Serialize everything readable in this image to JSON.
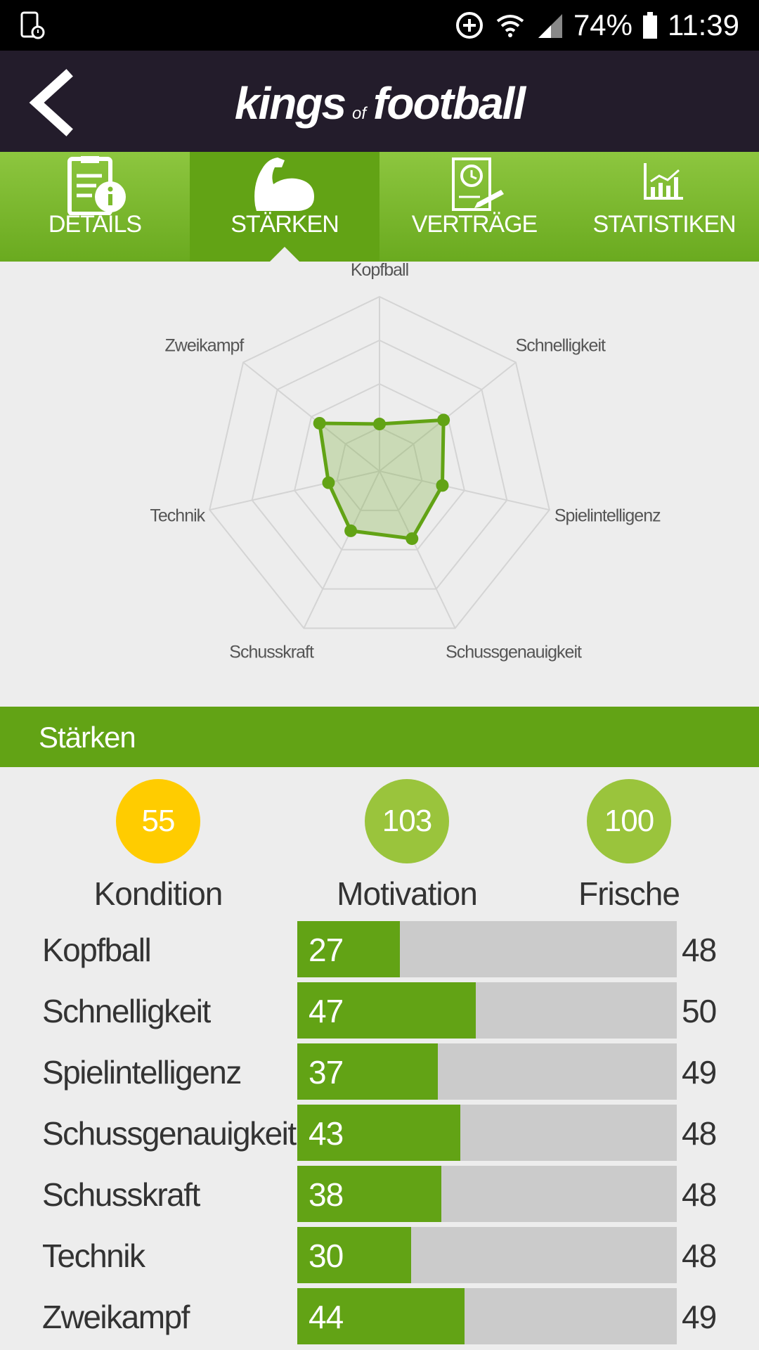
{
  "status_bar": {
    "battery": "74%",
    "time": "11:39",
    "icons": [
      "screen-lock-icon",
      "data-saver-icon",
      "wifi-icon",
      "signal-icon",
      "battery-icon"
    ]
  },
  "header": {
    "logo_part1": "kings",
    "logo_part2": "of",
    "logo_part3": "football",
    "back_icon": "back-arrow-icon"
  },
  "tabs": [
    {
      "label": "DETAILS",
      "icon": "details-clipboard-icon",
      "active": false
    },
    {
      "label": "STÄRKEN",
      "icon": "muscle-arm-icon",
      "active": true
    },
    {
      "label": "VERTRÄGE",
      "icon": "contract-icon",
      "active": false
    },
    {
      "label": "STATISTIKEN",
      "icon": "chart-icon",
      "active": false
    }
  ],
  "radar": {
    "axes": [
      "Kopfball",
      "Schnelligkeit",
      "Spielintelligenz",
      "Schussgenauigkeit",
      "Schusskraft",
      "Technik",
      "Zweikampf"
    ]
  },
  "section": {
    "title": "Stärken"
  },
  "circles": [
    {
      "value": "55",
      "label": "Kondition",
      "color": "#ffcc00"
    },
    {
      "value": "103",
      "label": "Motivation",
      "color": "#9ac43c"
    },
    {
      "value": "100",
      "label": "Frische",
      "color": "#9ac43c"
    }
  ],
  "stats": [
    {
      "name": "Kopfball",
      "value": "27",
      "max": "48"
    },
    {
      "name": "Schnelligkeit",
      "value": "47",
      "max": "50"
    },
    {
      "name": "Spielintelligenz",
      "value": "37",
      "max": "49"
    },
    {
      "name": "Schussgenauigkeit",
      "value": "43",
      "max": "48"
    },
    {
      "name": "Schusskraft",
      "value": "38",
      "max": "48"
    },
    {
      "name": "Technik",
      "value": "30",
      "max": "48"
    },
    {
      "name": "Zweikampf",
      "value": "44",
      "max": "49"
    }
  ],
  "chart_data": {
    "type": "radar",
    "categories": [
      "Kopfball",
      "Schnelligkeit",
      "Spielintelligenz",
      "Schussgenauigkeit",
      "Schusskraft",
      "Technik",
      "Zweikampf"
    ],
    "values": [
      27,
      47,
      37,
      43,
      38,
      30,
      44
    ],
    "range": [
      0,
      100
    ],
    "rings": 4,
    "grid": true,
    "color": "#62a315"
  }
}
